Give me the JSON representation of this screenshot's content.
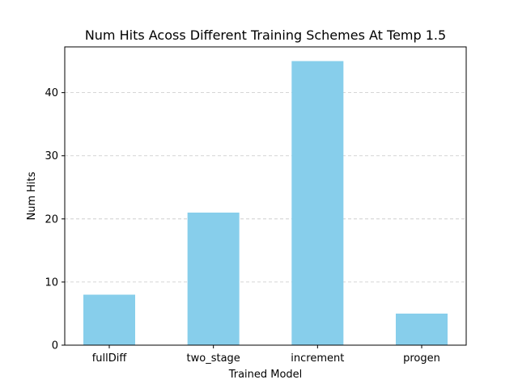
{
  "chart_data": {
    "type": "bar",
    "title": "Num Hits Acoss Different Training Schemes At Temp 1.5",
    "xlabel": "Trained Model",
    "ylabel": "Num Hits",
    "categories": [
      "fullDiff",
      "two_stage",
      "increment",
      "progen"
    ],
    "values": [
      8,
      21,
      45,
      5
    ],
    "ylim": [
      0,
      47.25
    ],
    "yticks": [
      0,
      10,
      20,
      30,
      40
    ],
    "grid": {
      "y": true,
      "style": "dashed"
    },
    "colors": {
      "bar": "#87ceeb",
      "grid": "#c8c8c8",
      "axis": "#000000"
    }
  }
}
